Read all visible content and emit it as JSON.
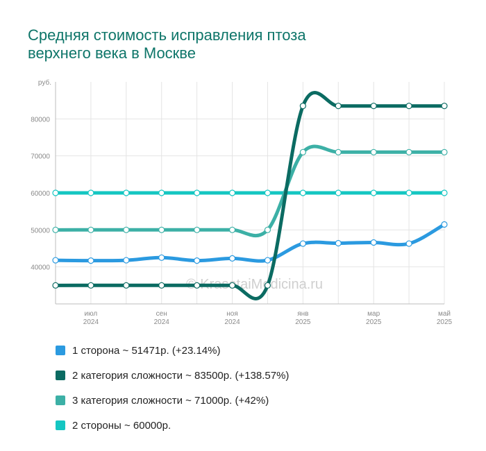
{
  "title_lines": [
    "Средняя стоимость исправления птоза",
    "верхнего века в Москве"
  ],
  "watermark": "© KrasotaiMedicina.ru",
  "chart_data": {
    "type": "line",
    "ylabel_unit": "руб.",
    "ylim": [
      30000,
      90000
    ],
    "y_ticks": [
      40000,
      50000,
      60000,
      70000,
      80000
    ],
    "x_ticks": [
      {
        "month": "июл",
        "year": "2024",
        "index": 1
      },
      {
        "month": "сен",
        "year": "2024",
        "index": 3
      },
      {
        "month": "ноя",
        "year": "2024",
        "index": 5
      },
      {
        "month": "янв",
        "year": "2025",
        "index": 7
      },
      {
        "month": "мар",
        "year": "2025",
        "index": 9
      },
      {
        "month": "май",
        "year": "2025",
        "index": 11
      }
    ],
    "x": [
      "2024-06",
      "2024-07",
      "2024-08",
      "2024-09",
      "2024-10",
      "2024-11",
      "2024-12",
      "2025-01",
      "2025-02",
      "2025-03",
      "2025-04",
      "2025-05"
    ],
    "grid": true,
    "series": [
      {
        "name": "1 сторона",
        "legend": "1 сторона ~ 51471р. (+23.14%)",
        "color": "#2b9ae0",
        "values": [
          41800,
          41700,
          41800,
          42500,
          41700,
          42300,
          41800,
          46300,
          46400,
          46600,
          46300,
          51471
        ]
      },
      {
        "name": "2 категория сложности",
        "legend": "2 категория сложности ~ 83500р. (+138.57%)",
        "color": "#0b6b62",
        "values": [
          35000,
          35000,
          35000,
          35000,
          35000,
          35000,
          35000,
          83500,
          83500,
          83500,
          83500,
          83500
        ]
      },
      {
        "name": "3 категория сложности",
        "legend": "3 категория сложности ~ 71000р. (+42%)",
        "color": "#3cb0a6",
        "values": [
          50000,
          50000,
          50000,
          50000,
          50000,
          50000,
          50000,
          71000,
          71000,
          71000,
          71000,
          71000
        ]
      },
      {
        "name": "2 стороны",
        "legend": "2 стороны ~ 60000р.",
        "color": "#14c6c2",
        "values": [
          60000,
          60000,
          60000,
          60000,
          60000,
          60000,
          60000,
          60000,
          60000,
          60000,
          60000,
          60000
        ]
      }
    ]
  }
}
